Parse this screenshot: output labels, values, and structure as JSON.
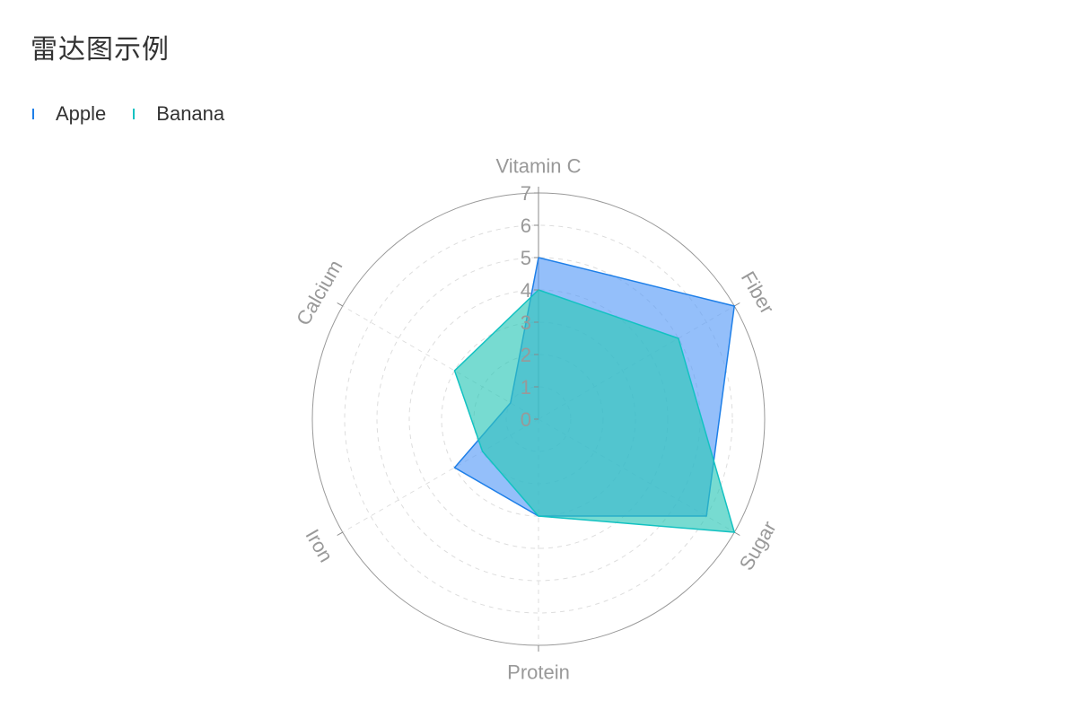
{
  "title": "雷达图示例",
  "legend": [
    {
      "name": "Apple",
      "color": "#1e7fe8"
    },
    {
      "name": "Banana",
      "color": "#13c2c2"
    }
  ],
  "chart_data": {
    "type": "radar",
    "title": "雷达图示例",
    "axes": [
      "Vitamin C",
      "Fiber",
      "Sugar",
      "Protein",
      "Iron",
      "Calcium"
    ],
    "rlim": [
      0,
      7
    ],
    "ticks": [
      "0",
      "1",
      "2",
      "3",
      "4",
      "5",
      "6",
      "7"
    ],
    "legend_position": "top-left",
    "grid": true,
    "series": [
      {
        "name": "Apple",
        "values": [
          5,
          7,
          6,
          3,
          3,
          1
        ],
        "color": "#1e7fe8",
        "fill": "#5b9cf8"
      },
      {
        "name": "Banana",
        "values": [
          4,
          5,
          7,
          3,
          2,
          3
        ],
        "color": "#13c2c2",
        "fill": "#2ec7b8"
      }
    ]
  }
}
